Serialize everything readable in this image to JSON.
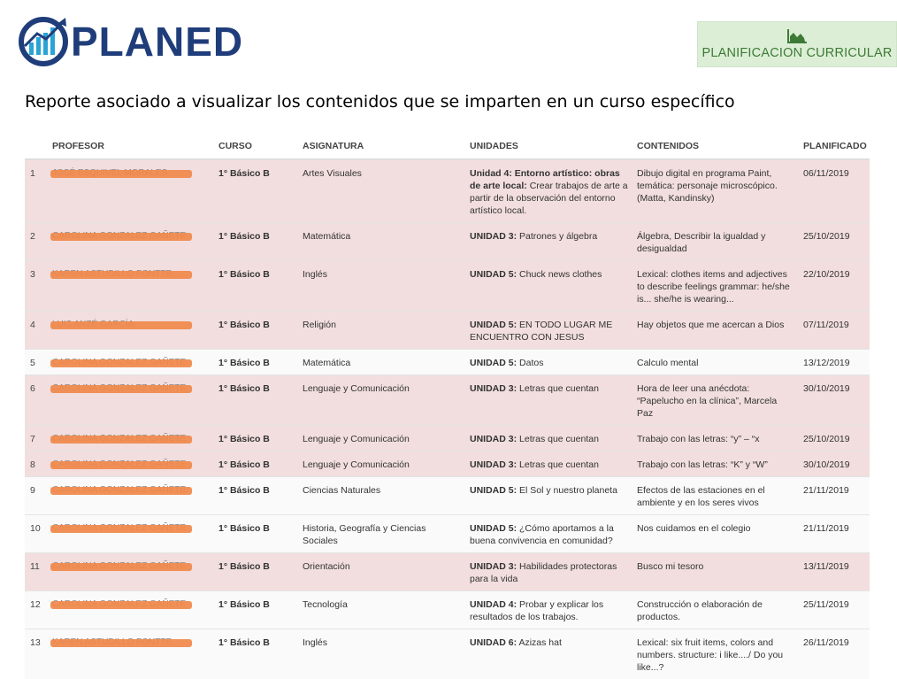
{
  "logo": {
    "text": "PLANED"
  },
  "planificacion_button": {
    "label": "PLANIFICACION CURRICULAR",
    "icon": "area-chart-icon"
  },
  "subtitle": "Reporte asociado a visualizar los contenidos que se imparten en un curso específico",
  "colors": {
    "highlight_row": "#f2dede",
    "accent_green": "#3e7a37",
    "button_bg": "#dcefd6",
    "logo_blue": "#1f3d7a",
    "redaction": "#f0884a"
  },
  "table": {
    "headers": {
      "profesor": "PROFESOR",
      "curso": "CURSO",
      "asignatura": "ASIGNATURA",
      "unidades": "UNIDADES",
      "contenidos": "CONTENIDOS",
      "planificado": "PLANIFICADO"
    },
    "rows": [
      {
        "num": "1",
        "profesor": "JOSÉ ESQUIVEL MORALES",
        "curso": "1° Básico B",
        "asignatura": "Artes Visuales",
        "unidad_label": "Unidad 4: Entorno artístico: obras de arte local:",
        "unidad_text": "Crear trabajos de arte a partir de la observación del entorno artístico local.",
        "contenidos": "Dibujo digital en programa Paint, temática: personaje microscópico. (Matta, Kandinsky)",
        "planificado": "06/11/2019"
      },
      {
        "num": "2",
        "profesor": "CAROLINA GONZALEZ GAÑETE",
        "curso": "1° Básico B",
        "asignatura": "Matemática",
        "unidad_label": "UNIDAD 3:",
        "unidad_text": "Patrones y álgebra",
        "contenidos": "Álgebra, Describir la igualdad y desigualdad",
        "planificado": "25/10/2019"
      },
      {
        "num": "3",
        "profesor": "KAREN ASTUDILLO FONTTE",
        "curso": "1° Básico B",
        "asignatura": "Inglés",
        "unidad_label": "UNIDAD 5:",
        "unidad_text": "Chuck news clothes",
        "contenidos": "Lexical: clothes items and adjectives to describe feelings grammar: he/she is... she/he is wearing...",
        "planificado": "22/10/2019"
      },
      {
        "num": "4",
        "profesor": "LUIS ANZÉ GARCÍA",
        "curso": "1° Básico B",
        "asignatura": "Religión",
        "unidad_label": "UNIDAD 5:",
        "unidad_text": "EN TODO LUGAR ME ENCUENTRO CON JESUS",
        "contenidos": "Hay objetos que me acercan a Dios",
        "planificado": "07/11/2019"
      },
      {
        "num": "5",
        "profesor": "CAROLINA GONZALEZ GAÑETE",
        "curso": "1° Básico B",
        "asignatura": "Matemática",
        "unidad_label": "UNIDAD 5:",
        "unidad_text": "Datos",
        "contenidos": "Calculo mental",
        "planificado": "13/12/2019"
      },
      {
        "num": "6",
        "profesor": "CAROLINA GONZALEZ GAÑETE",
        "curso": "1° Básico B",
        "asignatura": "Lenguaje y Comunicación",
        "unidad_label": "UNIDAD 3:",
        "unidad_text": "Letras que cuentan",
        "contenidos": "Hora de leer una anécdota: “Papelucho en la clínica”, Marcela Paz",
        "planificado": "30/10/2019"
      },
      {
        "num": "7",
        "profesor": "CAROLINA GONZALEZ GAÑETE",
        "curso": "1° Básico B",
        "asignatura": "Lenguaje y Comunicación",
        "unidad_label": "UNIDAD 3:",
        "unidad_text": "Letras que cuentan",
        "contenidos": "Trabajo con las letras: “y” – “x",
        "planificado": "25/10/2019"
      },
      {
        "num": "8",
        "profesor": "CAROLINA GONZALEZ GAÑETE",
        "curso": "1° Básico B",
        "asignatura": "Lenguaje y Comunicación",
        "unidad_label": "UNIDAD 3:",
        "unidad_text": "Letras que cuentan",
        "contenidos": "Trabajo con las letras: “K” y “W”",
        "planificado": "30/10/2019"
      },
      {
        "num": "9",
        "profesor": "CAROLINA GONZALEZ GAÑETE",
        "curso": "1° Básico B",
        "asignatura": "Ciencias Naturales",
        "unidad_label": "UNIDAD 5:",
        "unidad_text": "El Sol y nuestro planeta",
        "contenidos": "Efectos de las estaciones en el ambiente y en los seres vivos",
        "planificado": "21/11/2019"
      },
      {
        "num": "10",
        "profesor": "CAROLINA GONZALEZ GAÑETE",
        "curso": "1° Básico B",
        "asignatura": "Historia, Geografía y Ciencias Sociales",
        "unidad_label": "UNIDAD 5:",
        "unidad_text": "¿Cómo aportamos a la buena convivencia en comunidad?",
        "contenidos": "Nos cuidamos en el colegio",
        "planificado": "21/11/2019"
      },
      {
        "num": "11",
        "profesor": "CAROLINA GONZALEZ GAÑETE",
        "curso": "1° Básico B",
        "asignatura": "Orientación",
        "unidad_label": "UNIDAD 3:",
        "unidad_text": "Habilidades protectoras para la vida",
        "contenidos": "Busco mi tesoro",
        "planificado": "13/11/2019"
      },
      {
        "num": "12",
        "profesor": "CAROLINA GONZALEZ GAÑETE",
        "curso": "1° Básico B",
        "asignatura": "Tecnología",
        "unidad_label": "UNIDAD 4:",
        "unidad_text": "Probar y explicar los resultados de los trabajos.",
        "contenidos": "Construcción o elaboración de productos.",
        "planificado": "25/11/2019"
      },
      {
        "num": "13",
        "profesor": "KAREN ASTUDILLO FONTTE",
        "curso": "1° Básico B",
        "asignatura": "Inglés",
        "unidad_label": "UNIDAD 6:",
        "unidad_text": "Azizas hat",
        "contenidos": "Lexical: six fruit items, colors and numbers. structure: i like..../ Do you like...?",
        "planificado": "26/11/2019"
      }
    ]
  }
}
